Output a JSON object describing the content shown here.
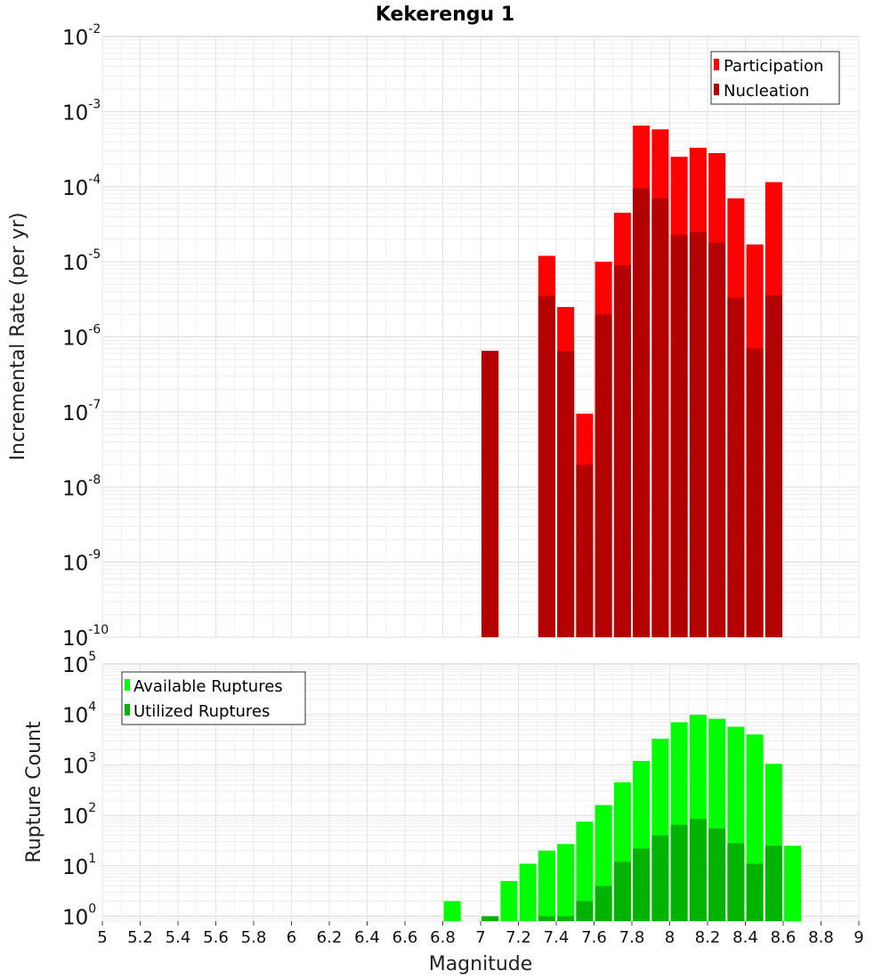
{
  "chart_data": [
    {
      "type": "bar",
      "title": "Kekerengu 1",
      "xlabel": "",
      "ylabel": "Incremental Rate (per yr)",
      "yscale": "log",
      "xlim": [
        5,
        9
      ],
      "ylim": [
        1e-10,
        0.01
      ],
      "y_ticks": [
        {
          "base": "10",
          "exp": "-10"
        },
        {
          "base": "10",
          "exp": "-9"
        },
        {
          "base": "10",
          "exp": "-8"
        },
        {
          "base": "10",
          "exp": "-7"
        },
        {
          "base": "10",
          "exp": "-6"
        },
        {
          "base": "10",
          "exp": "-5"
        },
        {
          "base": "10",
          "exp": "-4"
        },
        {
          "base": "10",
          "exp": "-3"
        },
        {
          "base": "10",
          "exp": "-2"
        }
      ],
      "legend_position": "top-right",
      "colors": {
        "Participation": "#ff0000",
        "Nucleation": "#b30000"
      },
      "x": [
        7.05,
        7.35,
        7.45,
        7.55,
        7.65,
        7.75,
        7.85,
        7.95,
        8.05,
        8.15,
        8.25,
        8.35,
        8.45,
        8.55
      ],
      "series": [
        {
          "name": "Participation",
          "values": [
            6.5e-07,
            1.2e-05,
            2.5e-06,
            9.5e-08,
            1e-05,
            4.5e-05,
            0.00065,
            0.00058,
            0.00025,
            0.00033,
            0.00028,
            7e-05,
            1.7e-05,
            0.000115
          ]
        },
        {
          "name": "Nucleation",
          "values": [
            6.5e-07,
            3.5e-06,
            6.5e-07,
            2e-08,
            2e-06,
            9e-06,
            9.5e-05,
            7e-05,
            2.3e-05,
            2.5e-05,
            1.8e-05,
            3.3e-06,
            7e-07,
            3.6e-06
          ]
        }
      ]
    },
    {
      "type": "bar",
      "title": "",
      "xlabel": "Magnitude",
      "ylabel": "Rupture Count",
      "yscale": "log",
      "xlim": [
        5,
        9
      ],
      "ylim": [
        0.8,
        100000
      ],
      "y_ticks": [
        {
          "base": "10",
          "exp": "0"
        },
        {
          "base": "10",
          "exp": "1"
        },
        {
          "base": "10",
          "exp": "2"
        },
        {
          "base": "10",
          "exp": "3"
        },
        {
          "base": "10",
          "exp": "4"
        },
        {
          "base": "10",
          "exp": "5"
        }
      ],
      "x_ticks": [
        "5",
        "5.2",
        "5.4",
        "5.6",
        "5.8",
        "6",
        "6.2",
        "6.4",
        "6.6",
        "6.8",
        "7",
        "7.2",
        "7.4",
        "7.6",
        "7.8",
        "8",
        "8.2",
        "8.4",
        "8.6",
        "8.8",
        "9"
      ],
      "legend_position": "top-left",
      "colors": {
        "Available Ruptures": "#00ff00",
        "Utilized Ruptures": "#00b300"
      },
      "x": [
        6.85,
        7.05,
        7.15,
        7.25,
        7.35,
        7.45,
        7.55,
        7.65,
        7.75,
        7.85,
        7.95,
        8.05,
        8.15,
        8.25,
        8.35,
        8.45,
        8.55,
        8.65
      ],
      "series": [
        {
          "name": "Available Ruptures",
          "values": [
            2,
            1,
            5,
            11,
            20,
            27,
            75,
            160,
            450,
            1200,
            3300,
            7000,
            9800,
            8200,
            5700,
            4000,
            1050,
            25
          ]
        },
        {
          "name": "Utilized Ruptures",
          "values": [
            null,
            1,
            null,
            null,
            1,
            1,
            2,
            4,
            12,
            22,
            40,
            65,
            85,
            55,
            28,
            11,
            25,
            null
          ]
        }
      ]
    }
  ]
}
